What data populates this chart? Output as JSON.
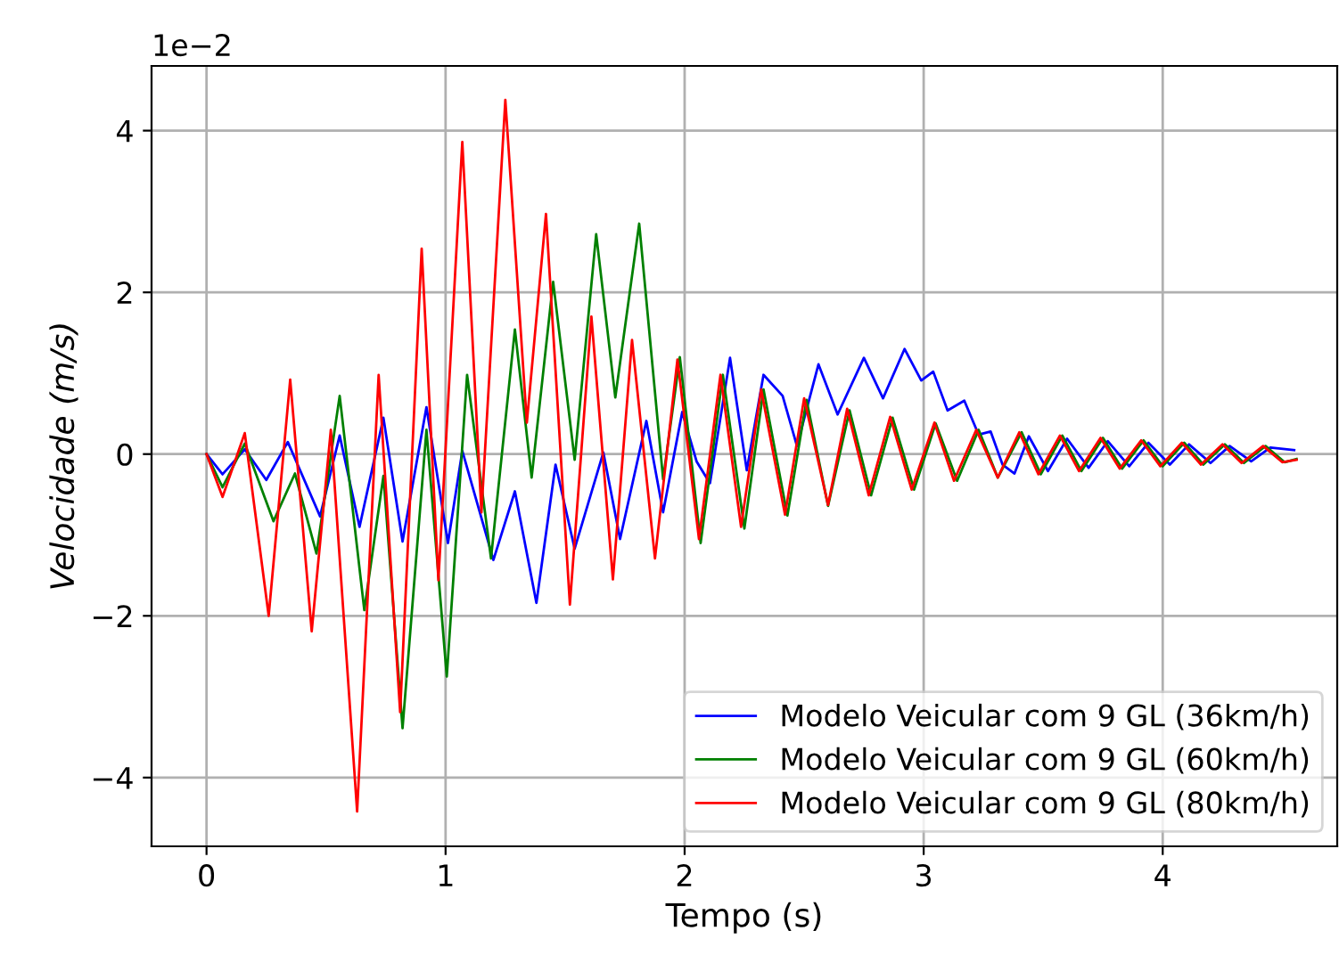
{
  "chart_data": {
    "type": "line",
    "xlabel": "Tempo (s)",
    "ylabel": "Velocidade (m/s)",
    "annotations": [
      "1e−2"
    ],
    "xlim": [
      -0.23,
      4.73
    ],
    "ylim": [
      -4.85,
      4.8
    ],
    "xticks": [
      0,
      1,
      2,
      3,
      4
    ],
    "yticks": [
      {
        "value": -4,
        "label": "−4"
      },
      {
        "value": -2,
        "label": "−2"
      },
      0,
      2,
      4
    ],
    "grid": true,
    "legend": "bottom right",
    "marker": "none",
    "line_style": "solid",
    "series": [
      {
        "name": "Modelo Veicular com 9 GL (36km/h)",
        "color": "#0000ff",
        "x": [
          0,
          0.067,
          0.16,
          0.25,
          0.34,
          0.475,
          0.557,
          0.64,
          0.74,
          0.82,
          0.92,
          1.01,
          1.07,
          1.2,
          1.29,
          1.38,
          1.46,
          1.54,
          1.66,
          1.73,
          1.84,
          1.91,
          1.99,
          2.05,
          2.106,
          2.19,
          2.26,
          2.33,
          2.41,
          2.47,
          2.56,
          2.64,
          2.75,
          2.83,
          2.92,
          2.99,
          3.04,
          3.1,
          3.17,
          3.23,
          3.28,
          3.33,
          3.38,
          3.44,
          3.52,
          3.6,
          3.69,
          3.77,
          3.86,
          3.94,
          4.03,
          4.11,
          4.2,
          4.28,
          4.37,
          4.45,
          4.55
        ],
        "values": [
          0,
          -0.25,
          0.06,
          -0.32,
          0.15,
          -0.77,
          0.23,
          -0.9,
          0.45,
          -1.08,
          0.58,
          -1.1,
          0.04,
          -1.31,
          -0.46,
          -1.84,
          -0.13,
          -1.17,
          0.02,
          -1.05,
          0.41,
          -0.72,
          0.52,
          -0.09,
          -0.36,
          1.19,
          -0.2,
          0.98,
          0.72,
          0.1,
          1.11,
          0.49,
          1.19,
          0.69,
          1.3,
          0.91,
          1.02,
          0.54,
          0.66,
          0.24,
          0.28,
          -0.13,
          -0.24,
          0.22,
          -0.21,
          0.19,
          -0.17,
          0.16,
          -0.15,
          0.14,
          -0.13,
          0.12,
          -0.11,
          0.1,
          -0.09,
          0.08,
          0.05
        ]
      },
      {
        "name": "Modelo Veicular com 9 GL (60km/h)",
        "color": "#008000",
        "x": [
          0,
          0.067,
          0.16,
          0.28,
          0.37,
          0.46,
          0.557,
          0.66,
          0.74,
          0.82,
          0.92,
          1.005,
          1.09,
          1.19,
          1.29,
          1.36,
          1.45,
          1.54,
          1.63,
          1.71,
          1.81,
          1.91,
          1.98,
          2.067,
          2.16,
          2.25,
          2.33,
          2.43,
          2.51,
          2.6,
          2.69,
          2.78,
          2.87,
          2.96,
          3.05,
          3.14,
          3.23,
          3.31,
          3.41,
          3.49,
          3.58,
          3.66,
          3.75,
          3.83,
          3.92,
          4.0,
          4.09,
          4.17,
          4.26,
          4.34,
          4.43,
          4.51,
          4.56
        ],
        "values": [
          0,
          -0.41,
          0.13,
          -0.83,
          -0.24,
          -1.23,
          0.72,
          -1.93,
          -0.27,
          -3.39,
          0.3,
          -2.75,
          0.98,
          -1.29,
          1.54,
          -0.29,
          2.13,
          -0.07,
          2.72,
          0.7,
          2.85,
          -0.31,
          1.2,
          -1.1,
          0.98,
          -0.92,
          0.8,
          -0.76,
          0.67,
          -0.64,
          0.54,
          -0.51,
          0.45,
          -0.44,
          0.38,
          -0.33,
          0.3,
          -0.29,
          0.27,
          -0.25,
          0.23,
          -0.21,
          0.2,
          -0.18,
          0.17,
          -0.15,
          0.14,
          -0.13,
          0.12,
          -0.11,
          0.1,
          -0.1,
          -0.06
        ]
      },
      {
        "name": "Modelo Veicular com 9 GL (80km/h)",
        "color": "#ff0000",
        "x": [
          0,
          0.067,
          0.16,
          0.26,
          0.35,
          0.44,
          0.52,
          0.63,
          0.72,
          0.81,
          0.9,
          0.97,
          1.07,
          1.15,
          1.25,
          1.34,
          1.42,
          1.52,
          1.61,
          1.7,
          1.78,
          1.876,
          1.97,
          2.06,
          2.15,
          2.236,
          2.32,
          2.42,
          2.5,
          2.6,
          2.68,
          2.77,
          2.86,
          2.95,
          3.045,
          3.127,
          3.22,
          3.31,
          3.4,
          3.48,
          3.57,
          3.65,
          3.74,
          3.82,
          3.91,
          3.99,
          4.08,
          4.16,
          4.25,
          4.33,
          4.42,
          4.5,
          4.56
        ],
        "values": [
          0,
          -0.53,
          0.26,
          -2.0,
          0.92,
          -2.19,
          0.3,
          -4.42,
          0.98,
          -3.19,
          2.54,
          -1.56,
          3.86,
          -0.72,
          4.38,
          0.39,
          2.97,
          -1.86,
          1.7,
          -1.55,
          1.41,
          -1.29,
          1.17,
          -1.05,
          0.98,
          -0.9,
          0.8,
          -0.75,
          0.69,
          -0.63,
          0.56,
          -0.51,
          0.46,
          -0.44,
          0.39,
          -0.33,
          0.3,
          -0.29,
          0.27,
          -0.25,
          0.23,
          -0.21,
          0.2,
          -0.18,
          0.17,
          -0.15,
          0.14,
          -0.13,
          0.12,
          -0.11,
          0.1,
          -0.1,
          -0.07
        ]
      }
    ]
  }
}
